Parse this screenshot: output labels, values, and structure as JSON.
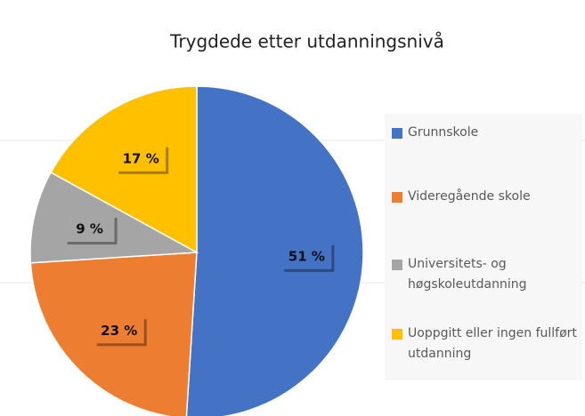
{
  "chart_data": {
    "type": "pie",
    "title": "Trygdede etter utdanningsnivå",
    "categories": [
      "Grunnskole",
      "Videregående skole",
      "Universitets- og høgskoleutdanning",
      "Uoppgitt eller ingen fullført utdanning"
    ],
    "values": [
      51,
      23,
      9,
      17
    ],
    "value_labels": [
      "51 %",
      "23 %",
      "9 %",
      "17 %"
    ],
    "colors": [
      "#4472c4",
      "#ed7d31",
      "#a5a5a5",
      "#ffc000"
    ],
    "legend": "right"
  }
}
